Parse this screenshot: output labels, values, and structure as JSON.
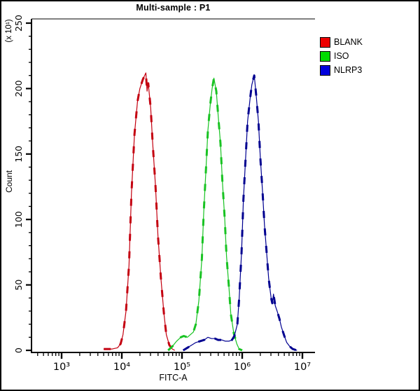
{
  "chart_data": {
    "type": "line",
    "subtype": "flow-cytometry-histogram-overlay",
    "title": "Multi-sample : P1",
    "xlabel": "FITC-A",
    "ylabel": "Count",
    "y_axis_multiplier": "(x 10¹)",
    "x_scale": "log10",
    "x_log_range": [
      2.5,
      7.26
    ],
    "ylim": [
      0,
      250
    ],
    "y_major_ticks": [
      0,
      50,
      100,
      150,
      200,
      250
    ],
    "y_minor_tick_step": 10,
    "x_major_ticks": [
      {
        "log": 3,
        "label": "10³"
      },
      {
        "log": 4,
        "label": "10⁴"
      },
      {
        "log": 5,
        "label": "10⁵"
      },
      {
        "log": 6,
        "label": "10⁶"
      },
      {
        "log": 7,
        "label": "10⁷"
      }
    ],
    "grid": false,
    "legend_position": "top-right",
    "legend": [
      {
        "label": "BLANK",
        "color": "#ee0000"
      },
      {
        "label": "ISO",
        "color": "#00dd00"
      },
      {
        "label": "NLRP3",
        "color": "#0000dd"
      }
    ],
    "series": [
      {
        "name": "BLANK",
        "color": "#c40010",
        "peak": {
          "log_x": 4.4,
          "count": 212
        },
        "points": [
          [
            3.7,
            1
          ],
          [
            3.84,
            1
          ],
          [
            3.93,
            2
          ],
          [
            3.98,
            5
          ],
          [
            4.02,
            12
          ],
          [
            4.07,
            30
          ],
          [
            4.12,
            65
          ],
          [
            4.16,
            120
          ],
          [
            4.21,
            165
          ],
          [
            4.26,
            190
          ],
          [
            4.3,
            200
          ],
          [
            4.35,
            207
          ],
          [
            4.4,
            212
          ],
          [
            4.42,
            198
          ],
          [
            4.44,
            204
          ],
          [
            4.48,
            185
          ],
          [
            4.51,
            160
          ],
          [
            4.56,
            125
          ],
          [
            4.6,
            88
          ],
          [
            4.65,
            55
          ],
          [
            4.7,
            28
          ],
          [
            4.74,
            12
          ],
          [
            4.79,
            4
          ],
          [
            4.84,
            1
          ],
          [
            4.88,
            0
          ]
        ]
      },
      {
        "name": "ISO",
        "color": "#19c323",
        "peak": {
          "log_x": 5.53,
          "count": 208
        },
        "points": [
          [
            4.77,
            0
          ],
          [
            4.84,
            3
          ],
          [
            4.91,
            7
          ],
          [
            4.98,
            10
          ],
          [
            5.03,
            11
          ],
          [
            5.09,
            10
          ],
          [
            5.14,
            12
          ],
          [
            5.19,
            14
          ],
          [
            5.23,
            20
          ],
          [
            5.28,
            38
          ],
          [
            5.33,
            70
          ],
          [
            5.36,
            105
          ],
          [
            5.4,
            140
          ],
          [
            5.43,
            168
          ],
          [
            5.47,
            188
          ],
          [
            5.5,
            200
          ],
          [
            5.53,
            208
          ],
          [
            5.57,
            198
          ],
          [
            5.6,
            180
          ],
          [
            5.64,
            158
          ],
          [
            5.67,
            130
          ],
          [
            5.71,
            100
          ],
          [
            5.74,
            72
          ],
          [
            5.78,
            48
          ],
          [
            5.81,
            28
          ],
          [
            5.86,
            13
          ],
          [
            5.91,
            5
          ],
          [
            5.95,
            1
          ],
          [
            6.0,
            0
          ]
        ]
      },
      {
        "name": "NLRP3",
        "color": "#000090",
        "peak": {
          "log_x": 6.2,
          "count": 210
        },
        "points": [
          [
            5.02,
            0
          ],
          [
            5.09,
            2
          ],
          [
            5.16,
            4
          ],
          [
            5.23,
            6
          ],
          [
            5.3,
            7
          ],
          [
            5.37,
            8
          ],
          [
            5.43,
            10
          ],
          [
            5.49,
            9
          ],
          [
            5.55,
            9
          ],
          [
            5.6,
            8
          ],
          [
            5.66,
            8
          ],
          [
            5.72,
            7
          ],
          [
            5.78,
            7
          ],
          [
            5.83,
            8
          ],
          [
            5.87,
            11
          ],
          [
            5.92,
            20
          ],
          [
            5.95,
            40
          ],
          [
            5.99,
            75
          ],
          [
            6.02,
            115
          ],
          [
            6.06,
            150
          ],
          [
            6.09,
            175
          ],
          [
            6.13,
            192
          ],
          [
            6.16,
            203
          ],
          [
            6.2,
            210
          ],
          [
            6.23,
            196
          ],
          [
            6.27,
            175
          ],
          [
            6.3,
            148
          ],
          [
            6.34,
            120
          ],
          [
            6.37,
            96
          ],
          [
            6.41,
            72
          ],
          [
            6.44,
            55
          ],
          [
            6.48,
            40
          ],
          [
            6.5,
            36
          ],
          [
            6.52,
            43
          ],
          [
            6.55,
            34
          ],
          [
            6.58,
            30
          ],
          [
            6.62,
            24
          ],
          [
            6.65,
            18
          ],
          [
            6.7,
            11
          ],
          [
            6.74,
            6
          ],
          [
            6.79,
            3
          ],
          [
            6.84,
            1
          ],
          [
            6.91,
            0
          ]
        ]
      }
    ]
  }
}
